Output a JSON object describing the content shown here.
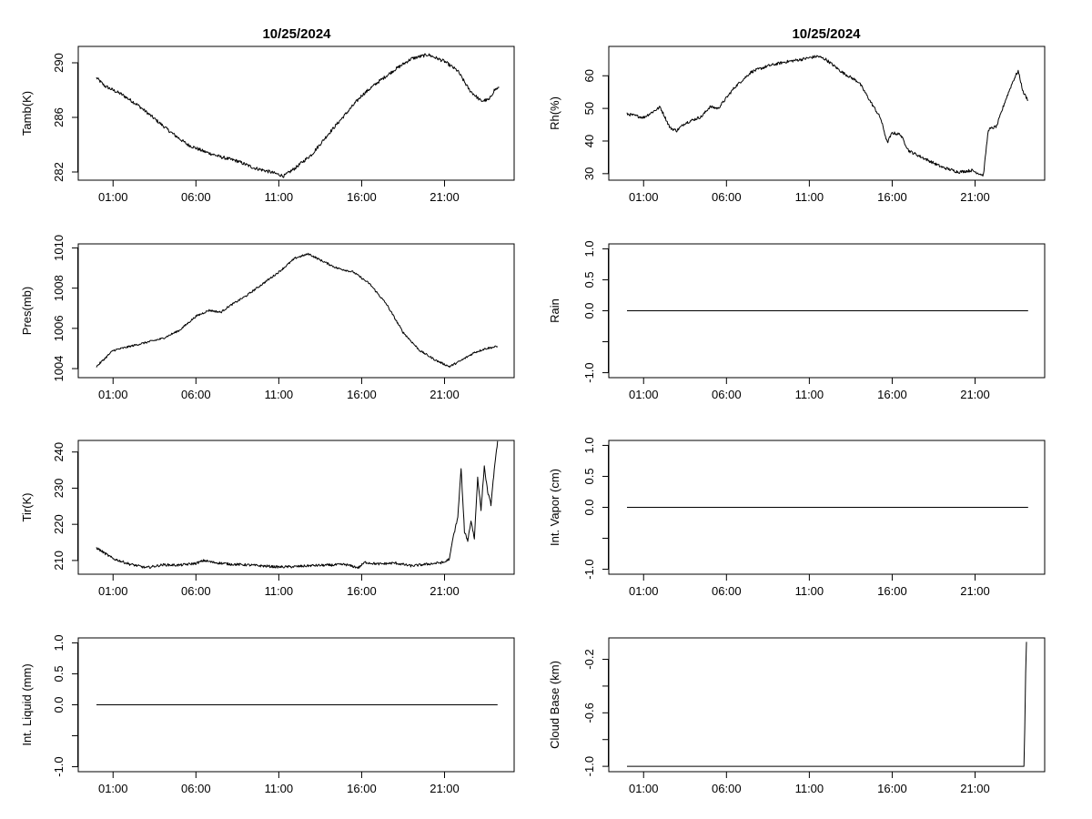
{
  "chart_data": [
    {
      "type": "line",
      "title": "10/25/2024",
      "ylabel": "Tamb(K)",
      "x_ticks": [
        "01:00",
        "06:00",
        "11:00",
        "16:00",
        "21:00"
      ],
      "y_ticks": [
        {
          "v": 282,
          "label": "282"
        },
        {
          "v": 286,
          "label": "286"
        },
        {
          "v": 290,
          "label": "290"
        }
      ],
      "ylim": [
        281.4,
        291.2
      ],
      "xlim": [
        -1.1,
        25.2
      ],
      "noise": 0.12,
      "series": [
        {
          "name": "Tamb(K)",
          "points": [
            [
              0,
              288.9
            ],
            [
              0.5,
              288.3
            ],
            [
              1.5,
              287.7
            ],
            [
              2.5,
              286.9
            ],
            [
              3.5,
              285.9
            ],
            [
              4.5,
              284.9
            ],
            [
              5.5,
              284.0
            ],
            [
              6.5,
              283.5
            ],
            [
              7.5,
              283.1
            ],
            [
              8.5,
              282.8
            ],
            [
              9.5,
              282.3
            ],
            [
              10.5,
              282.0
            ],
            [
              11.3,
              281.7
            ],
            [
              12.0,
              282.3
            ],
            [
              13.0,
              283.3
            ],
            [
              14.0,
              284.8
            ],
            [
              15.0,
              286.2
            ],
            [
              16.0,
              287.6
            ],
            [
              17.0,
              288.6
            ],
            [
              18.0,
              289.5
            ],
            [
              19.0,
              290.3
            ],
            [
              20.0,
              290.6
            ],
            [
              21.0,
              290.1
            ],
            [
              21.8,
              289.4
            ],
            [
              22.5,
              288.0
            ],
            [
              23.2,
              287.2
            ],
            [
              23.7,
              287.3
            ],
            [
              24.0,
              288.0
            ],
            [
              24.3,
              288.2
            ]
          ]
        }
      ]
    },
    {
      "type": "line",
      "title": "10/25/2024",
      "ylabel": "Rh(%)",
      "x_ticks": [
        "01:00",
        "06:00",
        "11:00",
        "16:00",
        "21:00"
      ],
      "y_ticks": [
        {
          "v": 30,
          "label": "30"
        },
        {
          "v": 40,
          "label": "40"
        },
        {
          "v": 50,
          "label": "50"
        },
        {
          "v": 60,
          "label": "60"
        }
      ],
      "ylim": [
        28,
        69
      ],
      "xlim": [
        -1.1,
        25.2
      ],
      "noise": 0.45,
      "series": [
        {
          "name": "Rh(%)",
          "points": [
            [
              0,
              48.3
            ],
            [
              1.0,
              47.2
            ],
            [
              2.0,
              50.4
            ],
            [
              2.6,
              44.0
            ],
            [
              3.0,
              43.2
            ],
            [
              3.5,
              45.5
            ],
            [
              4.5,
              47.5
            ],
            [
              5.0,
              50.5
            ],
            [
              5.5,
              50.0
            ],
            [
              6.5,
              56.5
            ],
            [
              7.5,
              61.2
            ],
            [
              8.5,
              63.0
            ],
            [
              9.5,
              64.2
            ],
            [
              10.5,
              65.0
            ],
            [
              11.5,
              66.0
            ],
            [
              12.0,
              65.0
            ],
            [
              13.0,
              61.0
            ],
            [
              14.0,
              58.0
            ],
            [
              14.7,
              52.0
            ],
            [
              15.3,
              47.0
            ],
            [
              15.7,
              39.5
            ],
            [
              16.0,
              42.5
            ],
            [
              16.5,
              42.0
            ],
            [
              17.0,
              37.0
            ],
            [
              18.0,
              34.5
            ],
            [
              19.0,
              32.0
            ],
            [
              20.0,
              30.5
            ],
            [
              20.8,
              31.0
            ],
            [
              21.5,
              29.5
            ],
            [
              21.8,
              43.5
            ],
            [
              22.3,
              44.5
            ],
            [
              22.8,
              52.0
            ],
            [
              23.3,
              58.5
            ],
            [
              23.6,
              61.5
            ],
            [
              23.9,
              55.0
            ],
            [
              24.2,
              52.5
            ]
          ]
        }
      ]
    },
    {
      "type": "line",
      "title": "",
      "ylabel": "Pres(mb)",
      "x_ticks": [
        "01:00",
        "06:00",
        "11:00",
        "16:00",
        "21:00"
      ],
      "y_ticks": [
        {
          "v": 1004,
          "label": "1004"
        },
        {
          "v": 1006,
          "label": "1006"
        },
        {
          "v": 1008,
          "label": "1008"
        },
        {
          "v": 1010,
          "label": "1010"
        }
      ],
      "ylim": [
        1003.55,
        1010.2
      ],
      "xlim": [
        -1.1,
        25.2
      ],
      "noise": 0.05,
      "series": [
        {
          "name": "Pres(mb)",
          "points": [
            [
              0,
              1004.1
            ],
            [
              1.0,
              1004.9
            ],
            [
              2.0,
              1005.1
            ],
            [
              3.0,
              1005.3
            ],
            [
              4.0,
              1005.5
            ],
            [
              5.0,
              1005.9
            ],
            [
              6.0,
              1006.6
            ],
            [
              6.8,
              1006.9
            ],
            [
              7.5,
              1006.8
            ],
            [
              8.0,
              1007.1
            ],
            [
              9.0,
              1007.6
            ],
            [
              10.0,
              1008.2
            ],
            [
              11.0,
              1008.8
            ],
            [
              12.0,
              1009.5
            ],
            [
              12.8,
              1009.7
            ],
            [
              13.5,
              1009.4
            ],
            [
              14.5,
              1009.0
            ],
            [
              15.5,
              1008.8
            ],
            [
              16.5,
              1008.2
            ],
            [
              17.5,
              1007.2
            ],
            [
              18.5,
              1005.8
            ],
            [
              19.5,
              1004.9
            ],
            [
              20.5,
              1004.4
            ],
            [
              21.3,
              1004.1
            ],
            [
              22.0,
              1004.4
            ],
            [
              22.8,
              1004.8
            ],
            [
              23.5,
              1005.0
            ],
            [
              24.2,
              1005.1
            ]
          ]
        }
      ]
    },
    {
      "type": "line",
      "title": "",
      "ylabel": "Rain",
      "x_ticks": [
        "01:00",
        "06:00",
        "11:00",
        "16:00",
        "21:00"
      ],
      "y_ticks": [
        {
          "v": -1.0,
          "label": "-1.0"
        },
        {
          "v": 0.0,
          "label": "0.0"
        },
        {
          "v": 0.5,
          "label": "0.5"
        },
        {
          "v": 1.0,
          "label": "1.0"
        }
      ],
      "y_minor": [
        -0.5
      ],
      "ylim": [
        -1.08,
        1.08
      ],
      "xlim": [
        -1.1,
        25.2
      ],
      "noise": 0,
      "series": [
        {
          "name": "Rain",
          "points": [
            [
              0,
              0
            ],
            [
              24.2,
              0
            ]
          ]
        }
      ]
    },
    {
      "type": "line",
      "title": "",
      "ylabel": "Tir(K)",
      "x_ticks": [
        "01:00",
        "06:00",
        "11:00",
        "16:00",
        "21:00"
      ],
      "y_ticks": [
        {
          "v": 210,
          "label": "210"
        },
        {
          "v": 220,
          "label": "220"
        },
        {
          "v": 230,
          "label": "230"
        },
        {
          "v": 240,
          "label": "240"
        }
      ],
      "ylim": [
        206.2,
        243.2
      ],
      "xlim": [
        -1.1,
        25.2
      ],
      "noise": 0.35,
      "series": [
        {
          "name": "Tir(K)",
          "points": [
            [
              0,
              213.5
            ],
            [
              1.0,
              210.5
            ],
            [
              2.0,
              209.0
            ],
            [
              3.0,
              208.0
            ],
            [
              4.0,
              208.8
            ],
            [
              5.0,
              208.7
            ],
            [
              6.0,
              209.2
            ],
            [
              6.5,
              210.0
            ],
            [
              7.0,
              209.5
            ],
            [
              8.0,
              209.0
            ],
            [
              9.0,
              208.8
            ],
            [
              10.0,
              208.5
            ],
            [
              11.0,
              208.2
            ],
            [
              12.0,
              208.3
            ],
            [
              13.0,
              208.6
            ],
            [
              14.0,
              208.7
            ],
            [
              15.0,
              208.9
            ],
            [
              15.8,
              208.0
            ],
            [
              16.2,
              209.5
            ],
            [
              17.0,
              209.0
            ],
            [
              18.0,
              209.3
            ],
            [
              19.0,
              208.5
            ],
            [
              20.0,
              209.0
            ],
            [
              21.0,
              209.5
            ],
            [
              21.3,
              210.5
            ],
            [
              21.5,
              216.0
            ],
            [
              21.8,
              222.0
            ],
            [
              22.0,
              235.5
            ],
            [
              22.2,
              218.0
            ],
            [
              22.4,
              215.5
            ],
            [
              22.6,
              221.0
            ],
            [
              22.8,
              216.0
            ],
            [
              23.0,
              233.0
            ],
            [
              23.2,
              224.0
            ],
            [
              23.4,
              236.0
            ],
            [
              23.6,
              229.0
            ],
            [
              23.8,
              225.5
            ],
            [
              24.0,
              235.0
            ],
            [
              24.2,
              243.0
            ]
          ]
        }
      ]
    },
    {
      "type": "line",
      "title": "",
      "ylabel": "Int. Vapor (cm)",
      "x_ticks": [
        "01:00",
        "06:00",
        "11:00",
        "16:00",
        "21:00"
      ],
      "y_ticks": [
        {
          "v": -1.0,
          "label": "-1.0"
        },
        {
          "v": 0.0,
          "label": "0.0"
        },
        {
          "v": 0.5,
          "label": "0.5"
        },
        {
          "v": 1.0,
          "label": "1.0"
        }
      ],
      "y_minor": [
        -0.5
      ],
      "ylim": [
        -1.08,
        1.08
      ],
      "xlim": [
        -1.1,
        25.2
      ],
      "noise": 0,
      "series": [
        {
          "name": "Int. Vapor (cm)",
          "points": [
            [
              0,
              0
            ],
            [
              24.2,
              0
            ]
          ]
        }
      ]
    },
    {
      "type": "line",
      "title": "",
      "ylabel": "Int. Liquid (mm)",
      "x_ticks": [
        "01:00",
        "06:00",
        "11:00",
        "16:00",
        "21:00"
      ],
      "y_ticks": [
        {
          "v": -1.0,
          "label": "-1.0"
        },
        {
          "v": 0.0,
          "label": "0.0"
        },
        {
          "v": 0.5,
          "label": "0.5"
        },
        {
          "v": 1.0,
          "label": "1.0"
        }
      ],
      "y_minor": [
        -0.5
      ],
      "ylim": [
        -1.08,
        1.08
      ],
      "xlim": [
        -1.1,
        25.2
      ],
      "noise": 0,
      "series": [
        {
          "name": "Int. Liquid (mm)",
          "points": [
            [
              0,
              0
            ],
            [
              24.2,
              0
            ]
          ]
        }
      ]
    },
    {
      "type": "line",
      "title": "",
      "ylabel": "Cloud Base (km)",
      "x_ticks": [
        "01:00",
        "06:00",
        "11:00",
        "16:00",
        "21:00"
      ],
      "y_ticks": [
        {
          "v": -1.0,
          "label": "-1.0"
        },
        {
          "v": -0.6,
          "label": "-0.6"
        },
        {
          "v": -0.2,
          "label": "-0.2"
        }
      ],
      "y_minor": [
        -0.8,
        -0.4
      ],
      "ylim": [
        -1.04,
        -0.04
      ],
      "xlim": [
        -1.1,
        25.2
      ],
      "noise": 0,
      "series": [
        {
          "name": "Cloud Base (km)",
          "points": [
            [
              0,
              -1.0
            ],
            [
              23.95,
              -1.0
            ],
            [
              24.0,
              -0.72
            ],
            [
              24.05,
              -0.3
            ],
            [
              24.1,
              -0.07
            ]
          ]
        }
      ]
    }
  ]
}
